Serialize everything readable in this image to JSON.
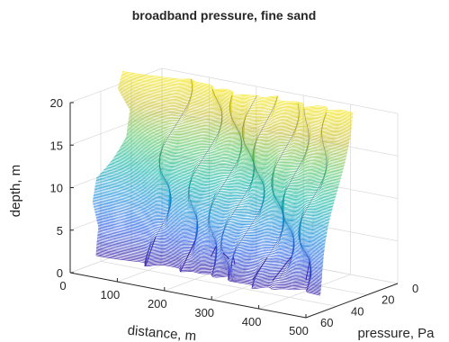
{
  "chart_data": {
    "type": "mesh3d",
    "title": "broadband pressure, fine sand",
    "xlabel": "distance, m",
    "ylabel": "pressure, Pa",
    "zlabel": "depth, m",
    "xlim": [
      0,
      500
    ],
    "ylim": [
      0,
      60
    ],
    "zlim": [
      0,
      20
    ],
    "x_ticks": [
      "0",
      "100",
      "200",
      "300",
      "400",
      "500"
    ],
    "y_ticks": [
      "0",
      "20",
      "40",
      "60"
    ],
    "z_ticks": [
      "0",
      "5",
      "10",
      "15",
      "20"
    ],
    "grid": true,
    "colormap": [
      "#3e26a8",
      "#2f64e6",
      "#1d95d9",
      "#17b8a8",
      "#5cc86b",
      "#c9c13a",
      "#f5e620"
    ],
    "depth_range": [
      2,
      22
    ],
    "front_profile": [
      {
        "z": 2,
        "x": 35
      },
      {
        "z": 5,
        "x": 28
      },
      {
        "z": 7.5,
        "x": 5
      },
      {
        "z": 10,
        "x": 0
      },
      {
        "z": 12,
        "x": 20
      },
      {
        "z": 15,
        "x": 45
      },
      {
        "z": 18,
        "x": 48
      },
      {
        "z": 20,
        "x": 15
      },
      {
        "z": 22,
        "x": 20
      }
    ],
    "spikes": [
      {
        "x": 145,
        "z": 2
      },
      {
        "x": 215,
        "z": 2
      },
      {
        "x": 265,
        "z": 4
      },
      {
        "x": 300,
        "z": 4
      },
      {
        "x": 330,
        "z": 4
      },
      {
        "x": 380,
        "z": 3
      },
      {
        "x": 410,
        "z": 3
      },
      {
        "x": 455,
        "z": 3
      }
    ]
  }
}
